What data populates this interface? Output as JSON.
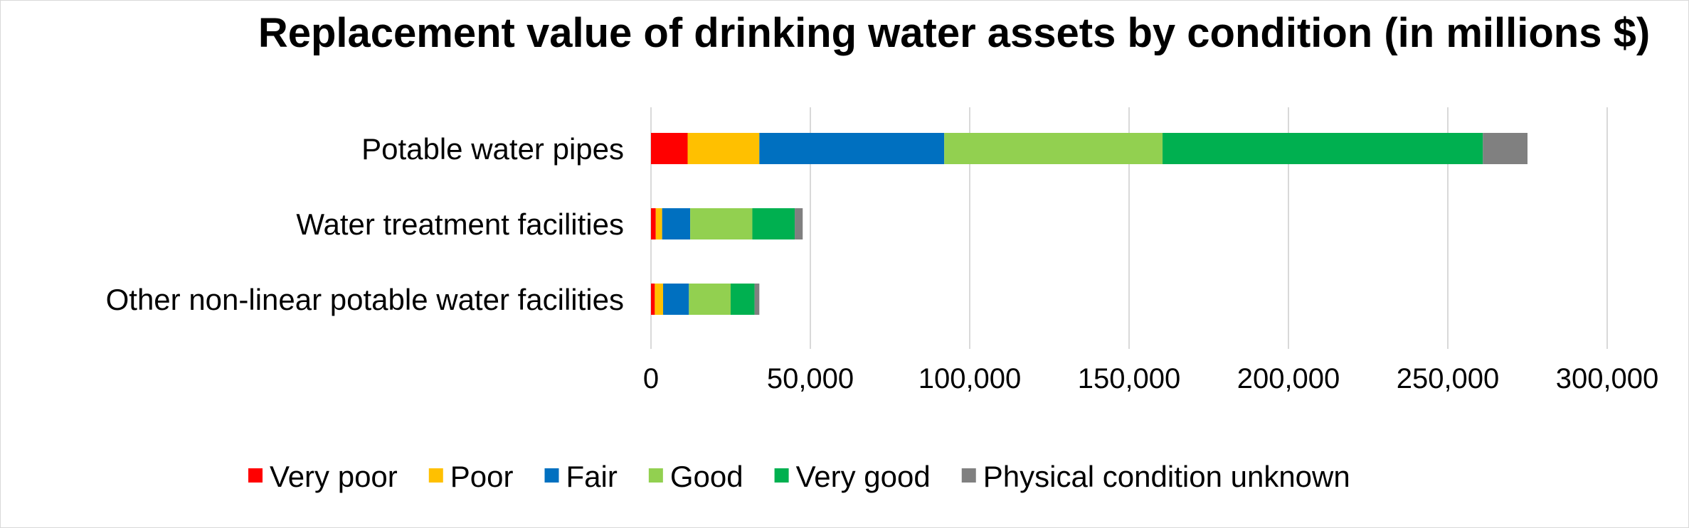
{
  "chart_data": {
    "type": "bar",
    "orientation": "horizontal",
    "stacked": true,
    "title": "Replacement value of drinking water assets by condition (in millions $)",
    "categories": [
      "Potable water pipes",
      "Water treatment facilities",
      "Other non-linear potable water facilities"
    ],
    "series": [
      {
        "name": "Very poor",
        "color": "#ff0000",
        "values": [
          11500,
          1500,
          1200
        ]
      },
      {
        "name": "Poor",
        "color": "#ffc000",
        "values": [
          22500,
          2000,
          2600
        ]
      },
      {
        "name": "Fair",
        "color": "#0070c0",
        "values": [
          58000,
          8800,
          8100
        ]
      },
      {
        "name": "Good",
        "color": "#92d050",
        "values": [
          68500,
          19500,
          13100
        ]
      },
      {
        "name": "Very good",
        "color": "#00b050",
        "values": [
          100500,
          13300,
          7500
        ]
      },
      {
        "name": "Physical condition unknown",
        "color": "#808080",
        "values": [
          14000,
          2500,
          1500
        ]
      }
    ],
    "xlim": [
      0,
      300000
    ],
    "xticks": [
      0,
      50000,
      100000,
      150000,
      200000,
      250000,
      300000
    ],
    "xtick_labels": [
      "0",
      "50,000",
      "100,000",
      "150,000",
      "200,000",
      "250,000",
      "300,000"
    ],
    "xlabel": "",
    "ylabel": "",
    "grid": true,
    "legend_position": "bottom"
  }
}
